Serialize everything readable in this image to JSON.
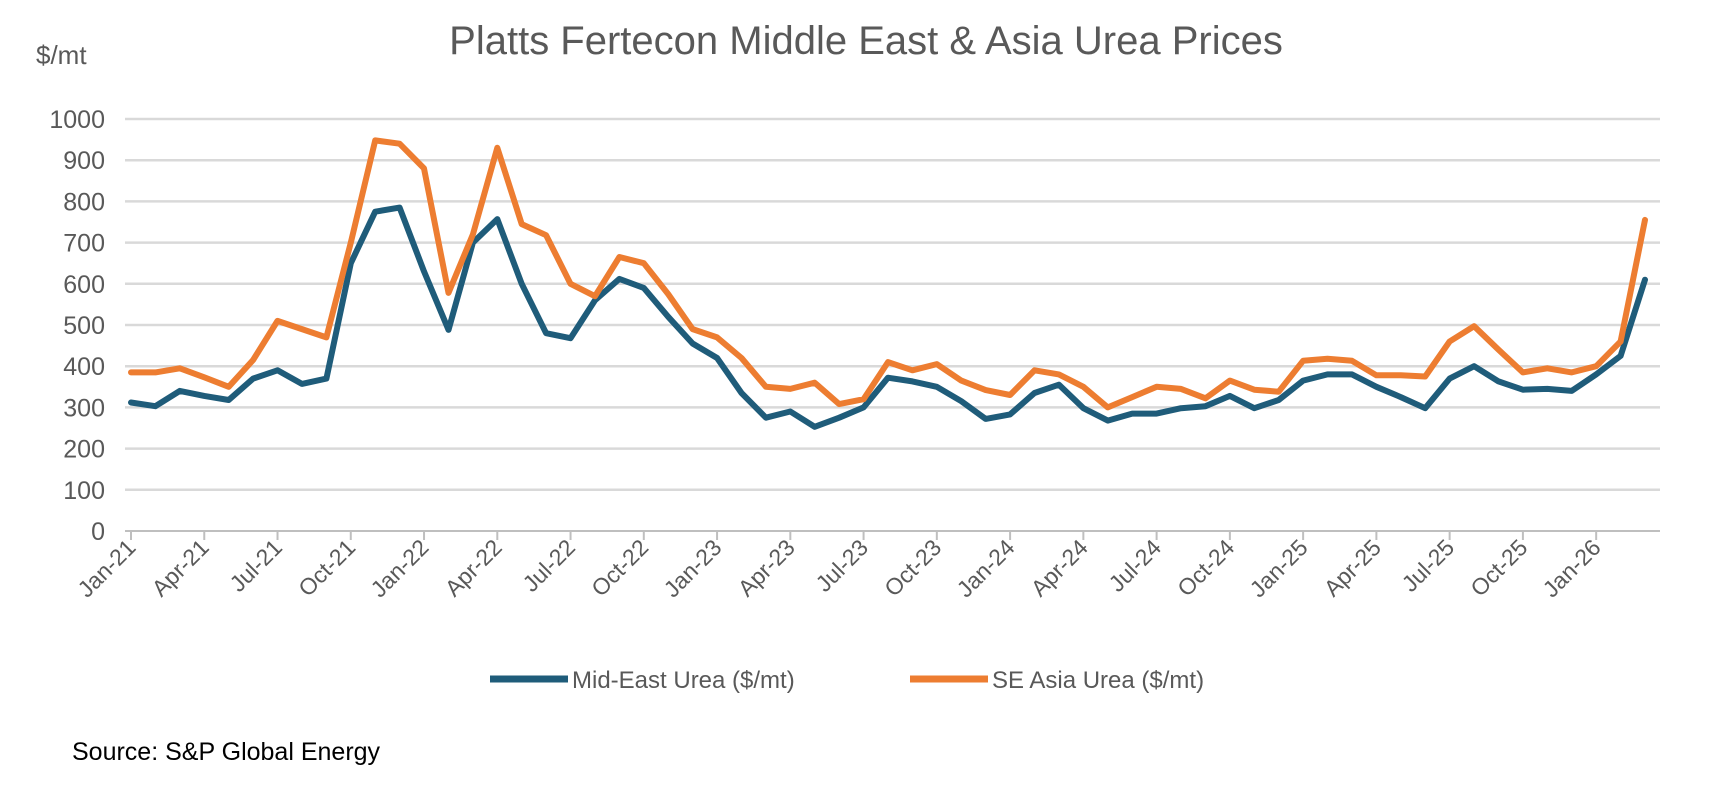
{
  "chart_data": {
    "type": "line",
    "title": "Platts Fertecon Middle East & Asia Urea Prices",
    "ylabel": "$/mt",
    "xlabel": "",
    "ylim": [
      0,
      1000
    ],
    "yticks": [
      "0",
      "100",
      "200",
      "300",
      "400",
      "500",
      "600",
      "700",
      "800",
      "900",
      "1000"
    ],
    "xtick_labels": [
      "Jan-21",
      "Apr-21",
      "Jul-21",
      "Oct-21",
      "Jan-22",
      "Apr-22",
      "Jul-22",
      "Oct-22",
      "Jan-23",
      "Apr-23",
      "Jul-23",
      "Oct-23",
      "Jan-24",
      "Apr-24",
      "Jul-24",
      "Oct-24",
      "Jan-25",
      "Apr-25",
      "Jul-25",
      "Oct-25",
      "Jan-26"
    ],
    "x_start": "Jan-21",
    "x_end": "Mar-26",
    "grid": true,
    "legend_position": "bottom",
    "series": [
      {
        "name": "Mid-East Urea ($/mt)",
        "color": "#1F5C7A",
        "values": [
          312,
          303,
          340,
          328,
          318,
          370,
          390,
          357,
          370,
          650,
          775,
          785,
          630,
          488,
          700,
          757,
          600,
          480,
          468,
          560,
          612,
          590,
          520,
          455,
          420,
          335,
          275,
          290,
          253,
          275,
          300,
          372,
          363,
          350,
          315,
          272,
          283,
          335,
          355,
          298,
          268,
          285,
          285,
          298,
          303,
          328,
          298,
          318,
          365,
          380,
          380,
          350,
          325,
          298,
          370,
          400,
          363,
          343,
          345,
          340,
          380,
          425,
          610
        ]
      },
      {
        "name": "SE Asia Urea ($/mt)",
        "color": "#ED7D31",
        "values": [
          385,
          385,
          395,
          373,
          350,
          415,
          510,
          490,
          470,
          700,
          948,
          940,
          880,
          578,
          720,
          930,
          745,
          718,
          600,
          570,
          665,
          650,
          575,
          490,
          470,
          420,
          350,
          345,
          360,
          308,
          320,
          410,
          390,
          405,
          365,
          342,
          330,
          390,
          380,
          350,
          300,
          325,
          350,
          345,
          322,
          365,
          343,
          338,
          413,
          418,
          413,
          378,
          378,
          375,
          460,
          497,
          440,
          385,
          395,
          385,
          400,
          460,
          755
        ]
      }
    ]
  },
  "source": "Source: S&P Global Energy"
}
